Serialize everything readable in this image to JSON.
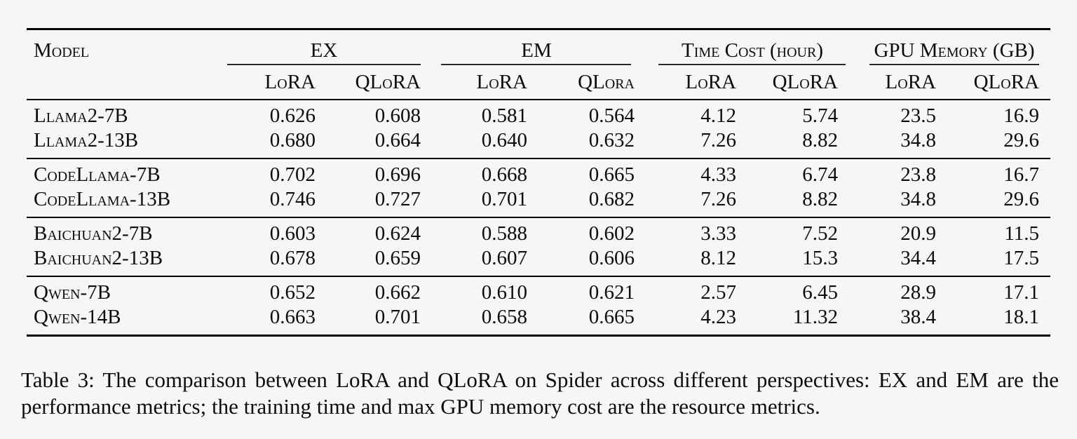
{
  "page": {
    "background": "#f6f6f6",
    "text_color": "#0d0d0d",
    "rule_color": "#000000"
  },
  "table": {
    "model_header": "Model",
    "groups": [
      {
        "label": "EX"
      },
      {
        "label": "EM"
      },
      {
        "label": "Time Cost (hour)"
      },
      {
        "label": "GPU Memory (GB)"
      }
    ],
    "sub_headers": [
      "LoRA",
      "QLoRA",
      "LoRA",
      "QLora",
      "LoRA",
      "QLoRA",
      "LoRA",
      "QLoRA"
    ],
    "row_groups": [
      {
        "rows": [
          {
            "model": "Llama2-7B",
            "values": [
              "0.626",
              "0.608",
              "0.581",
              "0.564",
              "4.12",
              "5.74",
              "23.5",
              "16.9"
            ]
          },
          {
            "model": "Llama2-13B",
            "values": [
              "0.680",
              "0.664",
              "0.640",
              "0.632",
              "7.26",
              "8.82",
              "34.8",
              "29.6"
            ]
          }
        ]
      },
      {
        "rows": [
          {
            "model": "CodeLlama-7B",
            "values": [
              "0.702",
              "0.696",
              "0.668",
              "0.665",
              "4.33",
              "6.74",
              "23.8",
              "16.7"
            ]
          },
          {
            "model": "CodeLlama-13B",
            "values": [
              "0.746",
              "0.727",
              "0.701",
              "0.682",
              "7.26",
              "8.82",
              "34.8",
              "29.6"
            ]
          }
        ]
      },
      {
        "rows": [
          {
            "model": "Baichuan2-7B",
            "values": [
              "0.603",
              "0.624",
              "0.588",
              "0.602",
              "3.33",
              "7.52",
              "20.9",
              "11.5"
            ]
          },
          {
            "model": "Baichuan2-13B",
            "values": [
              "0.678",
              "0.659",
              "0.607",
              "0.606",
              "8.12",
              "15.3",
              "34.4",
              "17.5"
            ]
          }
        ]
      },
      {
        "rows": [
          {
            "model": "Qwen-7B",
            "values": [
              "0.652",
              "0.662",
              "0.610",
              "0.621",
              "2.57",
              "6.45",
              "28.9",
              "17.1"
            ]
          },
          {
            "model": "Qwen-14B",
            "values": [
              "0.663",
              "0.701",
              "0.658",
              "0.665",
              "4.23",
              "11.32",
              "38.4",
              "18.1"
            ]
          }
        ]
      }
    ]
  },
  "caption": "Table 3: The comparison between LoRA and QLoRA on Spider across different perspectives: EX and EM are the performance metrics; the training time and max GPU memory cost are the resource metrics."
}
